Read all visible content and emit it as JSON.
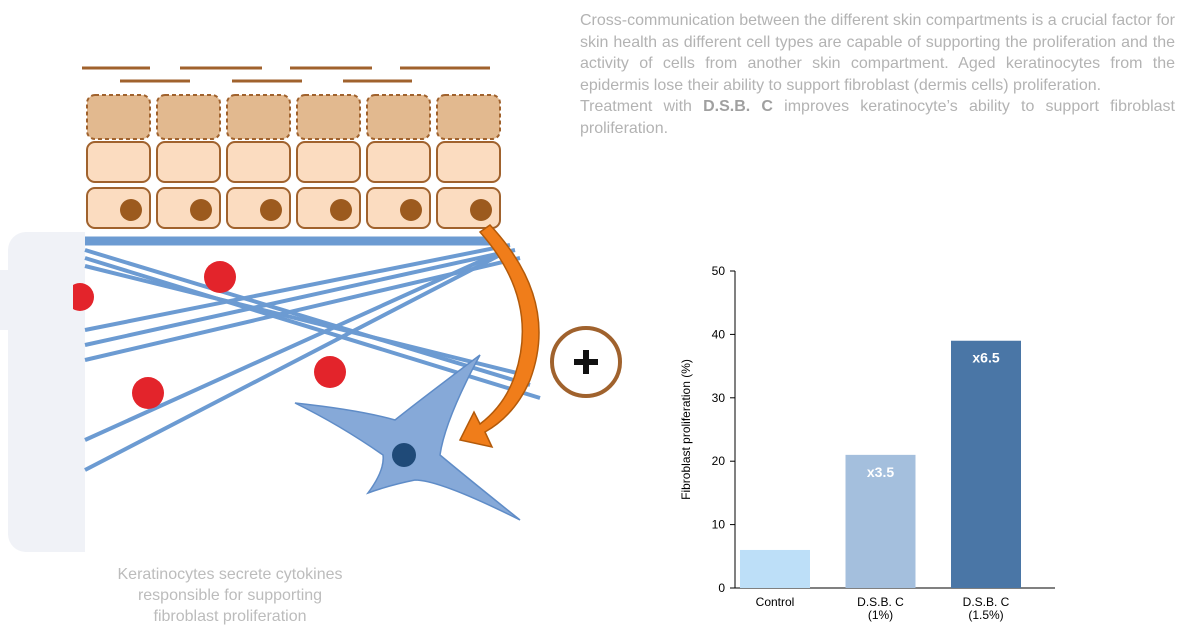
{
  "intro": {
    "paragraph": "Cross-communication between the different skin compartments is a crucial factor for skin health as different cell types are capable of supporting the proliferation and the activity of cells from another skin compartment. Aged keratinocytes from the epidermis lose their ability to support fibroblast (dermis cells) proliferation.",
    "treatment": [
      "Treatment with ",
      "D.S.B. C",
      " improves keratinocyte’s ability to support fibroblast proliferation."
    ]
  },
  "illustration": {
    "caption": "Keratinocytes secrete cytokines responsible for supporting fibroblast proliferation"
  },
  "chart_data": {
    "type": "bar",
    "y_label": "Fibroblast proliferation (%)",
    "categories": [
      "Control",
      "D.S.B. C (1%)",
      "D.S.B. C (1.5%)"
    ],
    "values": [
      6,
      21,
      39
    ],
    "colors": [
      "#bddff8",
      "#a4bfdd",
      "#4a76a6"
    ],
    "bar_annotations": [
      null,
      "x3.5",
      "x6.5"
    ],
    "ylim": [
      0,
      50
    ],
    "yticks": [
      0,
      10,
      20,
      30,
      40,
      50
    ]
  }
}
